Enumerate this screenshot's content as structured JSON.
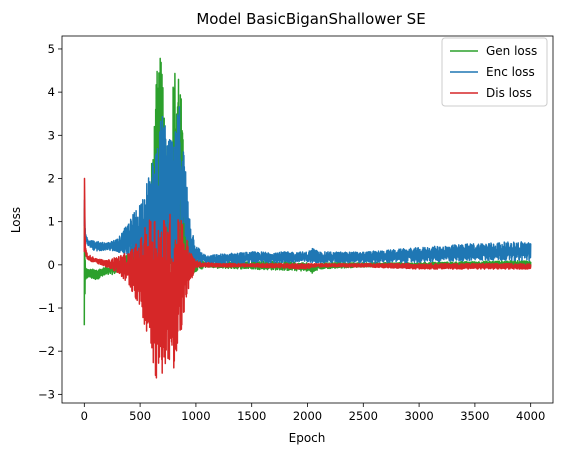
{
  "chart_data": {
    "type": "line",
    "title": "Model BasicBiganShallower SE",
    "xlabel": "Epoch",
    "ylabel": "Loss",
    "xlim": [
      -200,
      4200
    ],
    "ylim": [
      -3.2,
      5.3
    ],
    "xticks": [
      0,
      500,
      1000,
      1500,
      2000,
      2500,
      3000,
      3500,
      4000
    ],
    "yticks": [
      -3,
      -2,
      -1,
      0,
      1,
      2,
      3,
      4,
      5
    ],
    "xtick_labels": [
      "0",
      "500",
      "1000",
      "1500",
      "2000",
      "2500",
      "3000",
      "3500",
      "4000"
    ],
    "ytick_labels": [
      "−3",
      "−2",
      "−1",
      "0",
      "1",
      "2",
      "3",
      "4",
      "5"
    ],
    "grid": false,
    "legend_position": "top-right",
    "series": [
      {
        "name": "Gen loss",
        "color": "#2ca02c",
        "x": [
          0,
          10,
          30,
          100,
          200,
          300,
          400,
          500,
          600,
          650,
          700,
          750,
          800,
          850,
          900,
          950,
          1000,
          1050,
          1100,
          1200,
          1500,
          2000,
          2050,
          2100,
          2500,
          3000,
          3500,
          4000
        ],
        "low": [
          -1.4,
          -0.5,
          -0.3,
          -0.35,
          -0.25,
          -0.2,
          -0.1,
          -0.5,
          -0.7,
          -1.0,
          -0.8,
          -1.2,
          -0.6,
          -1.0,
          -0.5,
          -0.3,
          -0.15,
          -0.1,
          -0.05,
          -0.08,
          -0.1,
          -0.15,
          -0.2,
          -0.1,
          -0.05,
          -0.05,
          -0.05,
          -0.05
        ],
        "high": [
          1.3,
          0.0,
          -0.1,
          -0.1,
          -0.05,
          0.1,
          0.3,
          1.0,
          2.2,
          4.5,
          5.0,
          2.5,
          4.5,
          5.0,
          2.0,
          0.7,
          0.2,
          0.1,
          0.05,
          0.05,
          0.1,
          0.05,
          0.0,
          0.05,
          0.05,
          0.05,
          0.08,
          0.1
        ]
      },
      {
        "name": "Enc loss",
        "color": "#1f77b4",
        "x": [
          0,
          10,
          30,
          100,
          200,
          300,
          400,
          500,
          600,
          650,
          700,
          750,
          800,
          850,
          900,
          950,
          1000,
          1050,
          1100,
          1200,
          1500,
          2000,
          2050,
          2100,
          2500,
          3000,
          3500,
          4000
        ],
        "low": [
          0.9,
          0.6,
          0.45,
          0.3,
          0.35,
          0.3,
          0.2,
          0.0,
          -0.2,
          -0.8,
          -0.5,
          0.2,
          -0.2,
          0.0,
          0.2,
          0.1,
          0.0,
          0.05,
          0.05,
          0.0,
          0.05,
          0.05,
          0.05,
          0.05,
          0.05,
          0.05,
          0.1,
          0.1
        ],
        "high": [
          1.5,
          0.8,
          0.6,
          0.55,
          0.5,
          0.6,
          1.0,
          1.5,
          2.2,
          3.0,
          3.5,
          3.0,
          2.8,
          3.8,
          2.5,
          1.0,
          0.5,
          0.3,
          0.2,
          0.25,
          0.3,
          0.3,
          0.4,
          0.3,
          0.3,
          0.4,
          0.5,
          0.55
        ]
      },
      {
        "name": "Dis loss",
        "color": "#d62728",
        "x": [
          0,
          10,
          30,
          100,
          200,
          300,
          400,
          500,
          600,
          650,
          700,
          750,
          800,
          850,
          900,
          950,
          1000,
          1050,
          1100,
          1200,
          1500,
          2000,
          2050,
          2100,
          2500,
          3000,
          3500,
          4000
        ],
        "low": [
          0.3,
          0.2,
          0.1,
          0.05,
          -0.05,
          -0.2,
          -0.5,
          -1.0,
          -2.0,
          -2.8,
          -2.5,
          -2.2,
          -2.8,
          -2.0,
          -1.0,
          -0.4,
          -0.1,
          -0.05,
          -0.05,
          -0.05,
          -0.05,
          -0.1,
          -0.05,
          -0.05,
          -0.05,
          -0.1,
          -0.1,
          -0.1
        ],
        "high": [
          2.0,
          0.4,
          0.25,
          0.15,
          0.1,
          0.2,
          0.3,
          0.6,
          1.2,
          1.3,
          1.0,
          1.4,
          0.9,
          1.4,
          0.8,
          0.3,
          0.1,
          0.05,
          0.05,
          0.03,
          0.03,
          0.03,
          0.03,
          0.03,
          0.03,
          0.03,
          0.03,
          0.03
        ]
      }
    ]
  }
}
